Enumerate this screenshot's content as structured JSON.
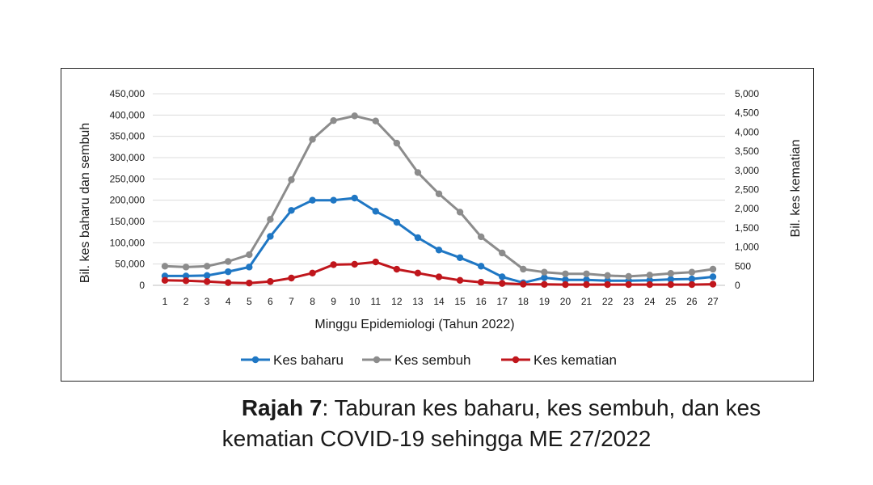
{
  "chart_data": {
    "type": "line",
    "xlabel": "Minggu Epidemiologi (Tahun 2022)",
    "ylabel_left": "Bil. kes baharu dan sembuh",
    "ylabel_right": "Bil. kes kematian",
    "x": [
      1,
      2,
      3,
      4,
      5,
      6,
      7,
      8,
      9,
      10,
      11,
      12,
      13,
      14,
      15,
      16,
      17,
      18,
      19,
      20,
      21,
      22,
      23,
      24,
      25,
      26,
      27
    ],
    "y_left_ticks": [
      "0",
      "50,000",
      "100,000",
      "150,000",
      "200,000",
      "250,000",
      "300,000",
      "350,000",
      "400,000",
      "450,000"
    ],
    "y_right_ticks": [
      "0",
      "500",
      "1,000",
      "1,500",
      "2,000",
      "2,500",
      "3,000",
      "3,500",
      "4,000",
      "4,500",
      "5,000"
    ],
    "ylim_left": [
      0,
      450000
    ],
    "ylim_right": [
      0,
      5000
    ],
    "grid": true,
    "legend_position": "bottom",
    "series": [
      {
        "name": "Kes baharu",
        "axis": "left",
        "color": "#1f77c4",
        "values": [
          22000,
          22000,
          23000,
          32000,
          43000,
          115000,
          176000,
          200000,
          200000,
          205000,
          174000,
          148000,
          112000,
          83000,
          65000,
          45000,
          20000,
          6000,
          18000,
          13000,
          13000,
          11000,
          11000,
          12000,
          14000,
          15000,
          20000
        ]
      },
      {
        "name": "Kes sembuh",
        "axis": "left",
        "color": "#8c8c8c",
        "values": [
          45000,
          43000,
          45000,
          56000,
          72000,
          155000,
          248000,
          343000,
          387000,
          398000,
          386000,
          334000,
          265000,
          215000,
          172000,
          114000,
          76000,
          38000,
          31000,
          27000,
          27000,
          23000,
          21000,
          24000,
          28000,
          31000,
          38000
        ]
      },
      {
        "name": "Kes kematian",
        "axis": "right",
        "color": "#c0161c",
        "values": [
          130,
          120,
          100,
          70,
          60,
          100,
          190,
          320,
          540,
          550,
          610,
          420,
          320,
          220,
          130,
          80,
          50,
          30,
          25,
          20,
          20,
          20,
          20,
          20,
          20,
          20,
          30
        ]
      }
    ]
  },
  "caption": {
    "label": "Rajah 7",
    "line1_rest": ": Taburan kes baharu, kes sembuh, dan kes",
    "line2": "kematian COVID-19 sehingga ME 27/2022"
  }
}
